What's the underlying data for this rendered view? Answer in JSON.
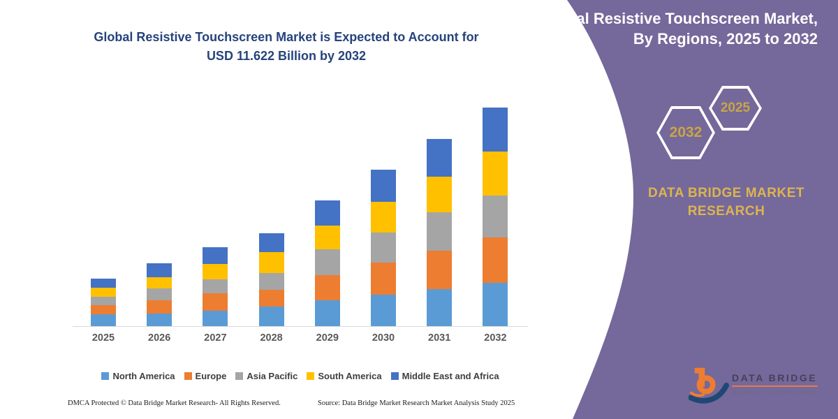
{
  "headline": {
    "line1": "Global Resistive Touchscreen Market is Expected to Account for",
    "line2": "USD 11.622 Billion by 2032",
    "color": "#26437c"
  },
  "chart_data": {
    "type": "bar",
    "stacked": true,
    "title": "Global Resistive Touchscreen Market is Expected to Account for USD 11.622 Billion by 2032",
    "unit": "USD Billion",
    "categories": [
      "2025",
      "2026",
      "2027",
      "2028",
      "2029",
      "2030",
      "2031",
      "2032"
    ],
    "series": [
      {
        "name": "North America",
        "color": "#5b9bd5",
        "values": [
          0.63,
          0.67,
          0.82,
          1.04,
          1.38,
          1.67,
          1.97,
          2.3
        ]
      },
      {
        "name": "Europe",
        "color": "#ed7d31",
        "values": [
          0.48,
          0.71,
          0.93,
          0.89,
          1.34,
          1.71,
          2.04,
          2.42
        ]
      },
      {
        "name": "Asia Pacific",
        "color": "#a5a5a5",
        "values": [
          0.45,
          0.63,
          0.74,
          0.89,
          1.38,
          1.6,
          2.04,
          2.23
        ]
      },
      {
        "name": "South America",
        "color": "#ffc000",
        "values": [
          0.48,
          0.59,
          0.82,
          1.12,
          1.26,
          1.64,
          1.9,
          2.34
        ]
      },
      {
        "name": "Middle East and Africa",
        "color": "#4472c4",
        "values": [
          0.48,
          0.74,
          0.89,
          1.0,
          1.34,
          1.71,
          2.01,
          2.34
        ]
      }
    ],
    "totals_estimated": [
      2.52,
      3.34,
      4.2,
      4.94,
      6.7,
      8.33,
      9.96,
      11.62
    ],
    "ylim": [
      0,
      12.5
    ],
    "grid": false,
    "legend_position": "bottom",
    "x_axis_labels_color": "#595959"
  },
  "side_panel": {
    "title_line1": "Global Resistive Touchscreen Market,",
    "title_line2": "By Regions, 2025 to 2032",
    "hexagon_back_year": "2032",
    "hexagon_front_year": "2025",
    "brand_line1": "DATA BRIDGE MARKET",
    "brand_line2": "RESEARCH",
    "colors": {
      "panel": "#75689b",
      "gold": "#dcb54f",
      "hex_year_gold": "#c9a544",
      "white": "#ffffff"
    }
  },
  "footer": {
    "left": "DMCA Protected © Data Bridge Market Research-  All Rights Reserved.",
    "source": "Source: Data Bridge Market Research  Market Analysis Study 2025"
  },
  "logo": {
    "name": "DATA BRIDGE",
    "subtitle": "MARKET RESEARCH",
    "icon_orange": "#ed7d31",
    "icon_navy": "#1f4874"
  }
}
